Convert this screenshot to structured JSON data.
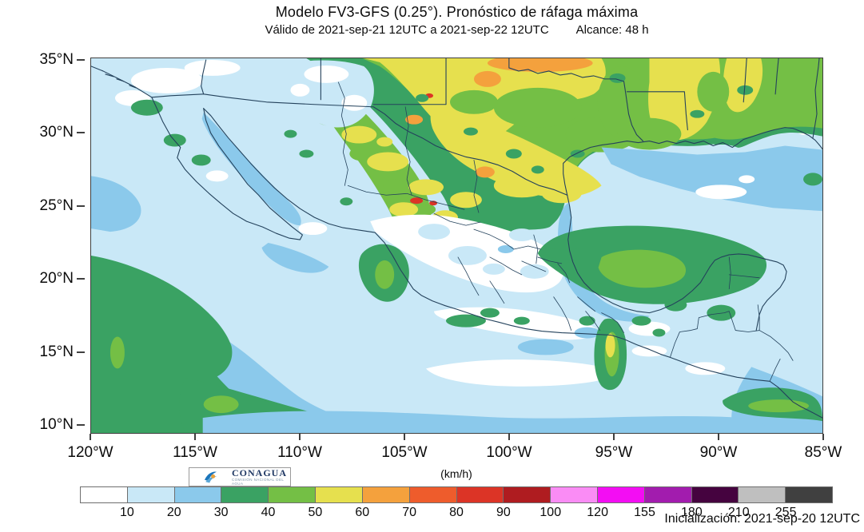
{
  "header": {
    "title": "Modelo FV3-GFS (0.25°). Pronóstico de ráfaga máxima",
    "valid_range": "Válido de 2021-sep-21 12UTC a 2021-sep-22 12UTC",
    "reach": "Alcance: 48 h"
  },
  "map": {
    "lat_labels": [
      "35°N",
      "30°N",
      "25°N",
      "20°N",
      "15°N",
      "10°N"
    ],
    "lon_labels": [
      "120°W",
      "115°W",
      "110°W",
      "105°W",
      "100°W",
      "95°W",
      "90°W",
      "85°W"
    ],
    "logo": {
      "name": "CONAGUA",
      "tagline": "COMISIÓN NACIONAL DEL AGUA"
    }
  },
  "colorbar": {
    "units_label": "(km/h)",
    "tick_labels": [
      "10",
      "20",
      "30",
      "40",
      "50",
      "60",
      "70",
      "80",
      "90",
      "100",
      "120",
      "155",
      "180",
      "210",
      "255"
    ],
    "segment_colors": [
      "#FFFFFF",
      "#C9E8F7",
      "#8BC9EB",
      "#3AA263",
      "#74BF45",
      "#E6E04E",
      "#F4A13D",
      "#EE5C2C",
      "#DC3426",
      "#AF1C20",
      "#FA8CF5",
      "#F30DF3",
      "#A21CAE",
      "#45033F",
      "#BFBFBF",
      "#404040"
    ]
  },
  "footer": {
    "initialization": "Inicialización: 2021-sep-20 12UTC"
  },
  "colors": {
    "map_outline": "#24425C",
    "frame": "#3f3f3f"
  }
}
